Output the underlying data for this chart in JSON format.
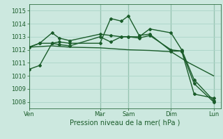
{
  "background_color": "#cce8df",
  "grid_color": "#aad4c8",
  "line_color": "#1a5c2a",
  "xlabel": "Pression niveau de la mer( hPa )",
  "ylim": [
    1007.5,
    1015.5
  ],
  "yticks": [
    1008,
    1009,
    1010,
    1011,
    1012,
    1013,
    1014,
    1015
  ],
  "xtick_labels": [
    "Ven",
    "Mar",
    "Sam",
    "Dim",
    "Lun"
  ],
  "xtick_positions": [
    0,
    40,
    56,
    80,
    104
  ],
  "xlim": [
    0,
    108
  ],
  "vline_positions": [
    0,
    40,
    56,
    80,
    104
  ],
  "series": [
    {
      "x": [
        0,
        6,
        13,
        17,
        23,
        40,
        46,
        52,
        56,
        62,
        68,
        80,
        86,
        93,
        104
      ],
      "y": [
        1010.5,
        1010.8,
        1012.5,
        1012.6,
        1012.5,
        1012.5,
        1014.4,
        1014.2,
        1014.6,
        1013.1,
        1013.2,
        1011.9,
        1011.9,
        1009.4,
        1008.0
      ],
      "marker": "D",
      "markersize": 2.0,
      "linewidth": 1.0
    },
    {
      "x": [
        0,
        6,
        13,
        17,
        23,
        40,
        46,
        52,
        56,
        62,
        68,
        80,
        86,
        93,
        104
      ],
      "y": [
        1012.2,
        1012.5,
        1013.3,
        1012.9,
        1012.7,
        1013.2,
        1013.1,
        1013.0,
        1013.0,
        1013.0,
        1013.6,
        1013.3,
        1012.0,
        1009.7,
        1008.1
      ],
      "marker": "D",
      "markersize": 2.0,
      "linewidth": 1.0
    },
    {
      "x": [
        0,
        6,
        13,
        17,
        23,
        40,
        46,
        52,
        56,
        62,
        68,
        80,
        86,
        93,
        104
      ],
      "y": [
        1012.2,
        1012.5,
        1012.5,
        1012.4,
        1012.3,
        1013.0,
        1012.6,
        1013.0,
        1013.0,
        1012.9,
        1013.1,
        1012.0,
        1011.9,
        1008.6,
        1008.3
      ],
      "marker": "D",
      "markersize": 2.0,
      "linewidth": 1.0
    },
    {
      "x": [
        0,
        13,
        23,
        40,
        56,
        68,
        80,
        90,
        104
      ],
      "y": [
        1012.2,
        1012.3,
        1012.2,
        1012.15,
        1012.0,
        1011.95,
        1011.85,
        1011.0,
        1010.0
      ],
      "marker": null,
      "markersize": 0,
      "linewidth": 1.0
    }
  ]
}
